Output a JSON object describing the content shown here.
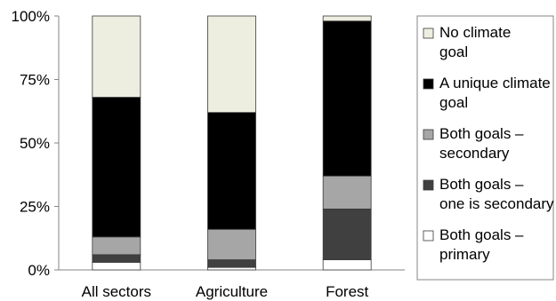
{
  "chart_data": {
    "type": "bar",
    "stacked": true,
    "percent": true,
    "categories": [
      "All sectors",
      "Agriculture",
      "Forest"
    ],
    "series": [
      {
        "name": "Both goals – primary",
        "color": "#ffffff",
        "values": [
          3,
          1,
          4
        ]
      },
      {
        "name": "Both goals – one is secondary",
        "color": "#404040",
        "values": [
          3,
          3,
          20
        ]
      },
      {
        "name": "Both goals – secondary",
        "color": "#a6a6a6",
        "values": [
          7,
          12,
          13
        ]
      },
      {
        "name": "A unique climate goal",
        "color": "#000000",
        "values": [
          55,
          46,
          61
        ]
      },
      {
        "name": "No climate goal",
        "color": "#eeeee0",
        "values": [
          32,
          38,
          2
        ]
      }
    ],
    "yticks": [
      "0%",
      "25%",
      "50%",
      "75%",
      "100%"
    ],
    "ylim": [
      0,
      100
    ],
    "grid": false,
    "legend_position": "right",
    "title": "",
    "xlabel": "",
    "ylabel": ""
  }
}
